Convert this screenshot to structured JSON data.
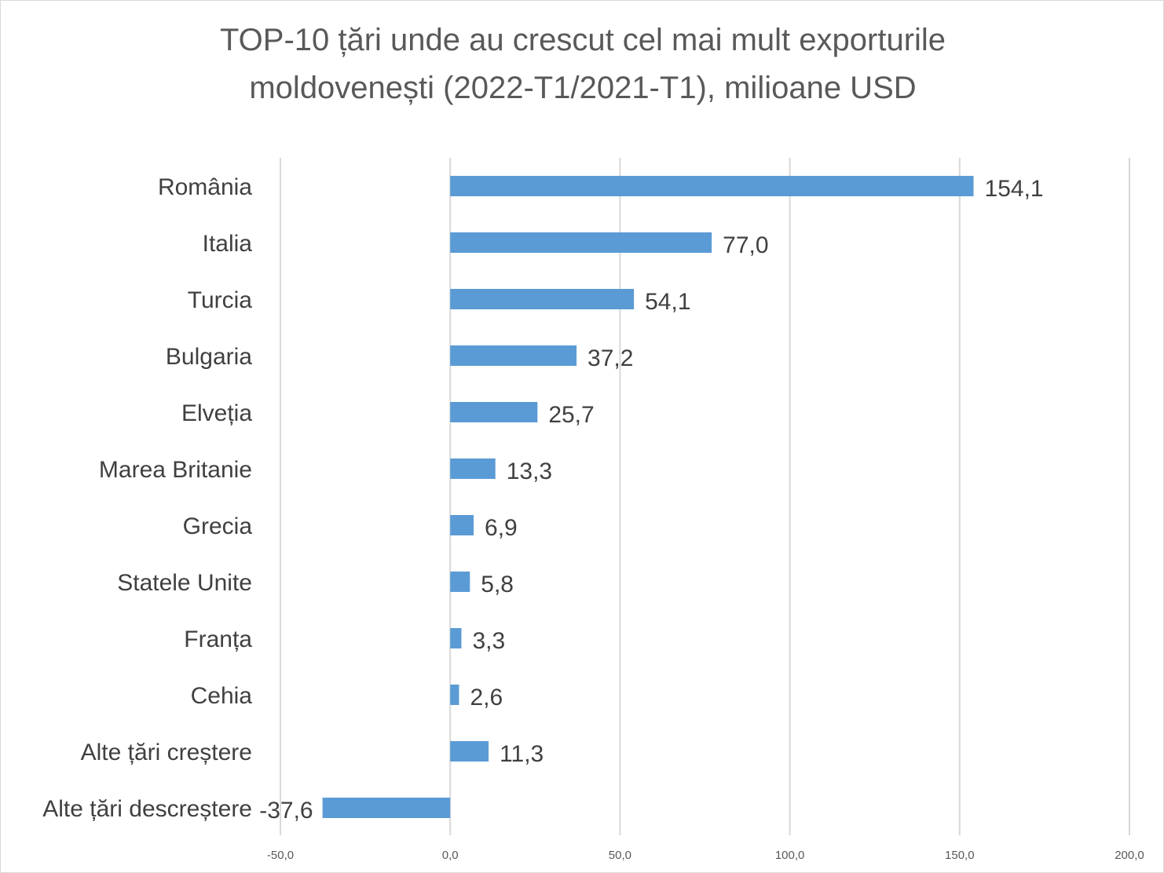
{
  "chart_data": {
    "type": "bar",
    "orientation": "horizontal",
    "title": [
      "TOP-10 țări unde au crescut cel mai mult exporturile",
      "moldovenești (2022-T1/2021-T1), milioane USD"
    ],
    "xlabel": "",
    "ylabel": "",
    "categories": [
      "România",
      "Italia",
      "Turcia",
      "Bulgaria",
      "Elveția",
      "Marea Britanie",
      "Grecia",
      "Statele Unite",
      "Franța",
      "Cehia",
      "Alte țări creștere",
      "Alte țări descreștere"
    ],
    "values": [
      154.1,
      77.0,
      54.1,
      37.2,
      25.7,
      13.3,
      6.9,
      5.8,
      3.3,
      2.6,
      11.3,
      -37.6
    ],
    "value_labels": [
      "154,1",
      "77,0",
      "54,1",
      "37,2",
      "25,7",
      "13,3",
      "6,9",
      "5,8",
      "3,3",
      "2,6",
      "11,3",
      "-37,6"
    ],
    "xlim": [
      -50,
      200
    ],
    "xticks": [
      -50,
      0,
      50,
      100,
      150,
      200
    ],
    "xtick_labels": [
      "-50,0",
      "0,0",
      "50,0",
      "100,0",
      "150,0",
      "200,0"
    ],
    "grid": "vertical",
    "legend": "none",
    "bar_color": "#5b9bd5",
    "grid_color": "#d9d9d9"
  }
}
